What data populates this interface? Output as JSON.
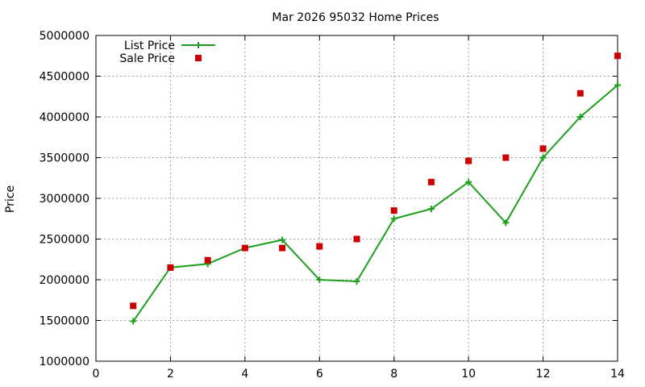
{
  "chart_data": {
    "type": "line",
    "title": "Mar 2026 95032 Home Prices",
    "xlabel": "",
    "ylabel": "Price",
    "xlim": [
      0,
      14
    ],
    "ylim": [
      1000000,
      5000000
    ],
    "x_ticks": [
      0,
      2,
      4,
      6,
      8,
      10,
      12,
      14
    ],
    "y_ticks": [
      1000000,
      1500000,
      2000000,
      2500000,
      3000000,
      3500000,
      4000000,
      4500000,
      5000000
    ],
    "grid": true,
    "legend_position": "top-left",
    "series": [
      {
        "name": "List Price",
        "style": "line-plus",
        "color": "#1ea01e",
        "x": [
          1,
          2,
          3,
          4,
          5,
          6,
          7,
          8,
          9,
          10,
          11,
          12,
          13,
          14
        ],
        "y": [
          1490000,
          2150000,
          2195000,
          2390000,
          2490000,
          2000000,
          1980000,
          2750000,
          2870000,
          3200000,
          2700000,
          3500000,
          4000000,
          4390000
        ]
      },
      {
        "name": "Sale Price",
        "style": "square-points",
        "color": "#cc0000",
        "x": [
          1,
          2,
          3,
          4,
          5,
          6,
          7,
          8,
          9,
          10,
          11,
          12,
          13,
          14
        ],
        "y": [
          1680000,
          2150000,
          2240000,
          2390000,
          2390000,
          2410000,
          2500000,
          2850000,
          3200000,
          3460000,
          3500000,
          3610000,
          4290000,
          4750000
        ]
      }
    ]
  }
}
